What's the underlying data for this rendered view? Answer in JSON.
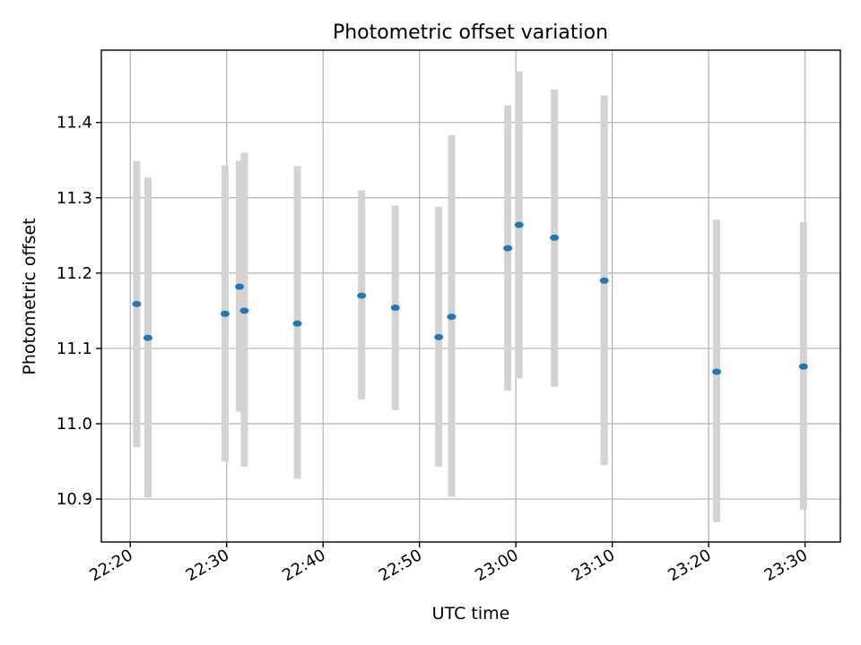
{
  "chart_data": {
    "type": "scatter",
    "title": "Photometric offset variation",
    "xlabel": "UTC time",
    "ylabel": "Photometric offset",
    "xlim": [
      "22:17:00",
      "23:33:40"
    ],
    "ylim": [
      10.843,
      11.496
    ],
    "grid": true,
    "x_ticks": [
      "22:20",
      "22:30",
      "22:40",
      "22:50",
      "23:00",
      "23:10",
      "23:20",
      "23:30"
    ],
    "y_ticks": [
      "10.9",
      "11.0",
      "11.1",
      "11.2",
      "11.3",
      "11.4"
    ],
    "colors": {
      "points": "#1f77b4",
      "error_bars": "#d3d3d3"
    },
    "points": [
      {
        "x": "22:20:40",
        "y": 11.159,
        "y_low": 10.969,
        "y_high": 11.349
      },
      {
        "x": "22:21:50",
        "y": 11.114,
        "y_low": 10.902,
        "y_high": 11.327
      },
      {
        "x": "22:29:50",
        "y": 11.146,
        "y_low": 10.95,
        "y_high": 11.343
      },
      {
        "x": "22:31:20",
        "y": 11.182,
        "y_low": 11.016,
        "y_high": 11.349
      },
      {
        "x": "22:31:50",
        "y": 11.15,
        "y_low": 10.943,
        "y_high": 11.36
      },
      {
        "x": "22:37:20",
        "y": 11.133,
        "y_low": 10.927,
        "y_high": 11.342
      },
      {
        "x": "22:44:00",
        "y": 11.17,
        "y_low": 11.032,
        "y_high": 11.31
      },
      {
        "x": "22:47:30",
        "y": 11.154,
        "y_low": 11.018,
        "y_high": 11.29
      },
      {
        "x": "22:52:00",
        "y": 11.115,
        "y_low": 10.943,
        "y_high": 11.288
      },
      {
        "x": "22:53:20",
        "y": 11.142,
        "y_low": 10.903,
        "y_high": 11.383
      },
      {
        "x": "22:59:10",
        "y": 11.233,
        "y_low": 11.044,
        "y_high": 11.423
      },
      {
        "x": "23:00:20",
        "y": 11.264,
        "y_low": 11.06,
        "y_high": 11.468
      },
      {
        "x": "23:04:00",
        "y": 11.247,
        "y_low": 11.049,
        "y_high": 11.444
      },
      {
        "x": "23:09:10",
        "y": 11.19,
        "y_low": 10.945,
        "y_high": 11.436
      },
      {
        "x": "23:20:50",
        "y": 11.069,
        "y_low": 10.869,
        "y_high": 11.271
      },
      {
        "x": "23:29:50",
        "y": 11.076,
        "y_low": 10.886,
        "y_high": 11.268
      }
    ]
  }
}
